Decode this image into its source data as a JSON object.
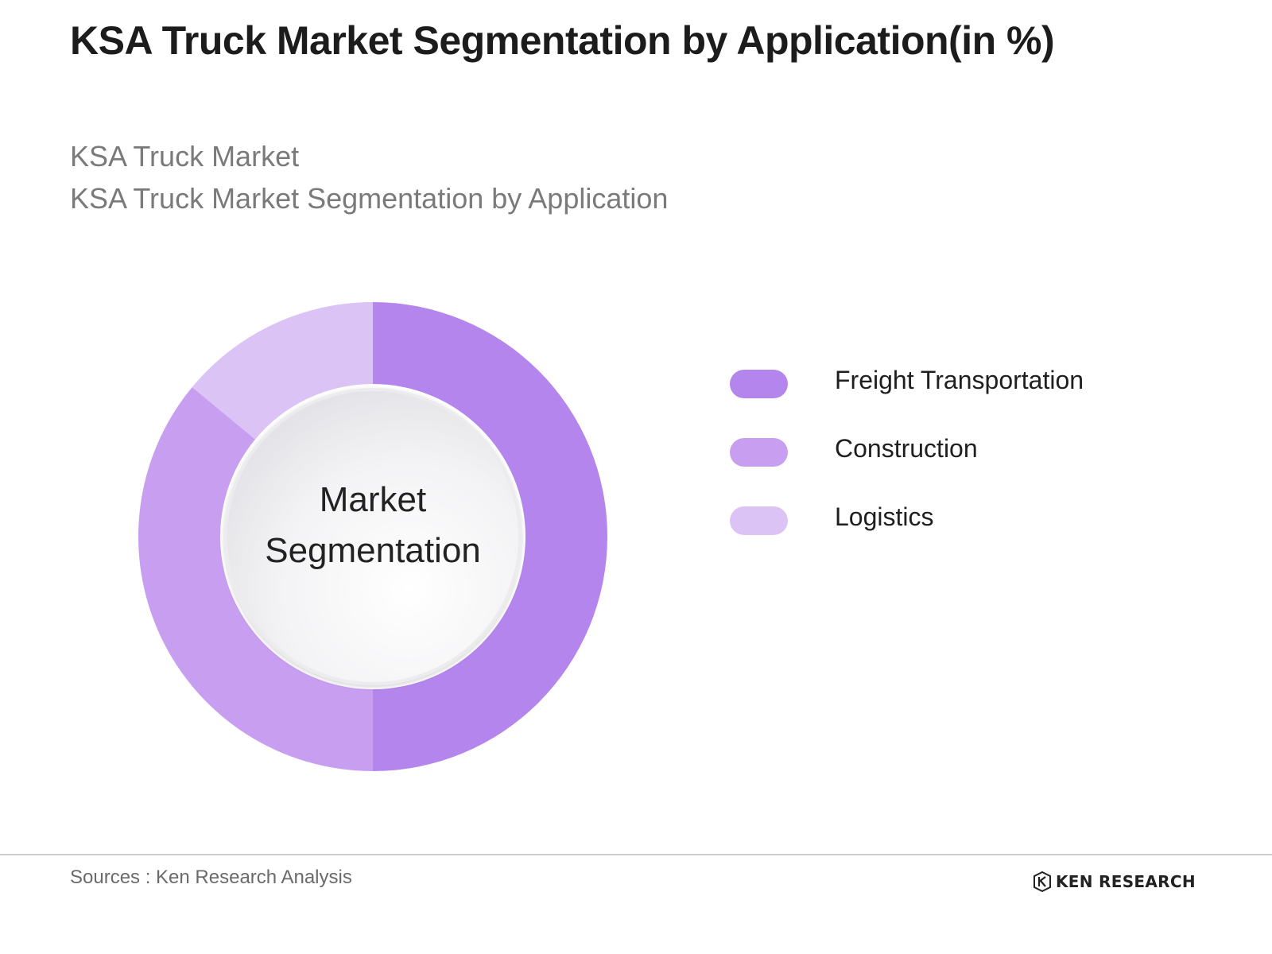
{
  "header": {
    "title": "KSA Truck Market Segmentation by Application(in %)",
    "subtitle_line1": "KSA Truck Market",
    "subtitle_line2": "KSA Truck Market Segmentation by Application"
  },
  "chart_data": {
    "type": "pie",
    "variant": "donut",
    "center_label_line1": "Market",
    "center_label_line2": "Segmentation",
    "legend_position": "right",
    "categories": [
      "Freight Transportation",
      "Construction",
      "Logistics"
    ],
    "values": [
      50,
      36,
      14
    ],
    "colors": [
      "#b485ec",
      "#c89ef0",
      "#dcc3f6"
    ]
  },
  "footer": {
    "sources": "Sources : Ken Research Analysis",
    "brand": "KEN RESEARCH"
  }
}
